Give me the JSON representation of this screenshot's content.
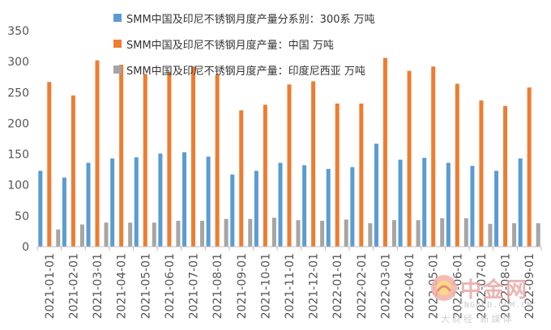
{
  "chart_data": {
    "type": "bar",
    "categories": [
      "2021-01-01",
      "2021-02-01",
      "2021-03-01",
      "2021-04-01",
      "2021-05-01",
      "2021-06-01",
      "2021-07-01",
      "2021-08-01",
      "2021-09-01",
      "2021-10-01",
      "2021-11-01",
      "2021-12-01",
      "2022-01-01",
      "2022-02-01",
      "2022-03-01",
      "2022-04-01",
      "2022-05-01",
      "2022-06-01",
      "2022-07-01",
      "2022-08-01",
      "2022-09-01"
    ],
    "series": [
      {
        "name": "SMM中国及印尼不锈钢月度产量分系别：300系 万吨",
        "color": "#5b9bd5",
        "values": [
          123,
          112,
          136,
          143,
          145,
          151,
          153,
          146,
          117,
          123,
          136,
          132,
          126,
          129,
          167,
          141,
          144,
          136,
          131,
          123,
          143
        ]
      },
      {
        "name": "SMM中国及印尼不锈钢月度产量：中国 万吨",
        "color": "#ed7d31",
        "values": [
          267,
          245,
          302,
          295,
          280,
          283,
          292,
          279,
          221,
          230,
          263,
          268,
          232,
          232,
          306,
          285,
          292,
          264,
          237,
          228,
          258
        ]
      },
      {
        "name": "SMM中国及印尼不锈钢月度产量：印度尼西亚 万吨",
        "color": "#a5a5a5",
        "values": [
          28,
          36,
          39,
          39,
          39,
          42,
          42,
          45,
          45,
          47,
          43,
          42,
          44,
          38,
          43,
          43,
          46,
          46,
          37,
          38,
          38
        ]
      }
    ],
    "ylim": [
      0,
      350
    ],
    "yticks": [
      "0",
      "50",
      "100",
      "150",
      "200",
      "250",
      "300",
      "350"
    ],
    "grid": false,
    "legend_position": "top"
  },
  "watermark": {
    "brand": "中金网",
    "site": "CNGOLD.COM.CN",
    "slogan": "大财经 新媒体"
  }
}
